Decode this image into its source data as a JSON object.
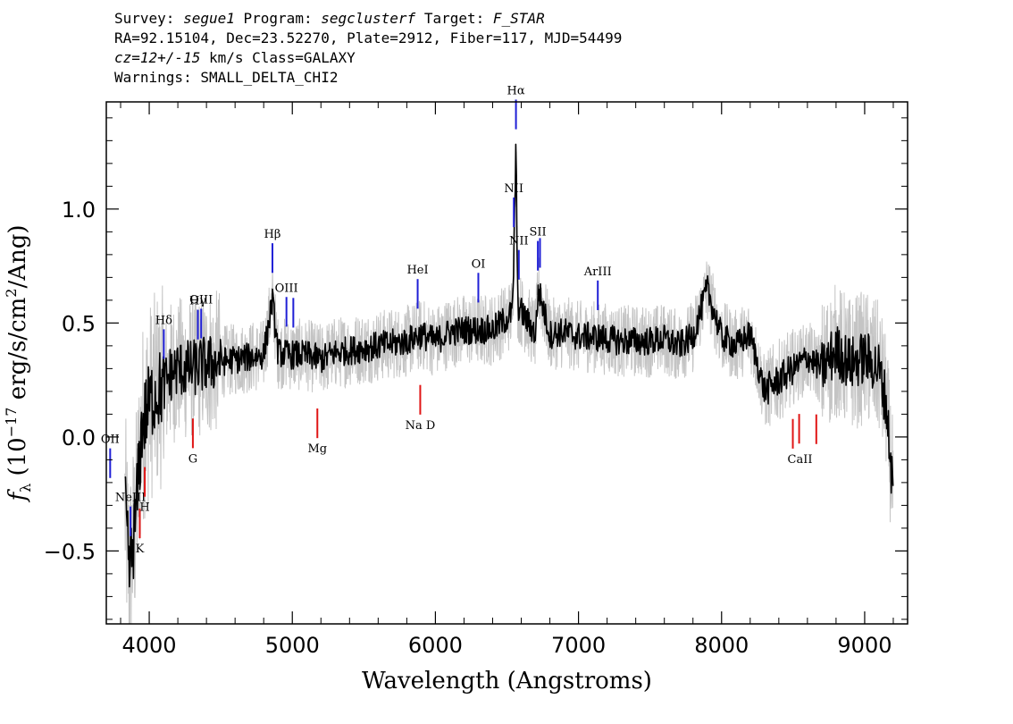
{
  "header": {
    "survey_label": "Survey:",
    "survey": "segue1",
    "program_label": "Program:",
    "program": "segclusterf",
    "target_label": "Target:",
    "target": "F_STAR",
    "line2": "RA=92.15104, Dec=23.52270, Plate=2912, Fiber=117, MJD=54499",
    "cz": "cz=12+/-15",
    "cz_units": "km/s Class=GALAXY",
    "warnings": "Warnings: SMALL_DELTA_CHI2"
  },
  "chart_data": {
    "type": "line",
    "xlabel": "Wavelength (Angstroms)",
    "ylabel": "f_λ (10^-17 erg/s/cm^2/Ang)",
    "xlim": [
      3700,
      9300
    ],
    "ylim": [
      -0.82,
      1.47
    ],
    "xticks": [
      4000,
      5000,
      6000,
      7000,
      8000,
      9000
    ],
    "yticks": [
      -0.5,
      0.0,
      0.5,
      1.0
    ],
    "xtick_labels": [
      "4000",
      "5000",
      "6000",
      "7000",
      "8000",
      "9000"
    ],
    "ytick_labels": [
      "−0.5",
      "0.0",
      "0.5",
      "1.0"
    ],
    "colors": {
      "smoothed": "#000000",
      "raw": "#c4c4c4",
      "emission": "#1f1fd6",
      "absorption": "#e01515"
    },
    "series": [
      {
        "name": "smoothed",
        "x": [
          3830,
          3860,
          3900,
          3950,
          4000,
          4050,
          4100,
          4150,
          4200,
          4300,
          4400,
          4500,
          4600,
          4700,
          4800,
          4861,
          4900,
          5000,
          5100,
          5200,
          5300,
          5400,
          5500,
          5600,
          5700,
          5800,
          5900,
          6000,
          6100,
          6200,
          6300,
          6400,
          6500,
          6540,
          6563,
          6575,
          6600,
          6700,
          6720,
          6800,
          6900,
          7000,
          7100,
          7200,
          7300,
          7400,
          7500,
          7600,
          7700,
          7800,
          7900,
          8000,
          8100,
          8200,
          8300,
          8400,
          8500,
          8600,
          8700,
          8800,
          8900,
          9000,
          9100,
          9150,
          9200
        ],
        "y": [
          -0.3,
          -0.6,
          -0.4,
          0.05,
          0.15,
          0.2,
          0.22,
          0.28,
          0.3,
          0.3,
          0.32,
          0.33,
          0.34,
          0.35,
          0.36,
          0.6,
          0.37,
          0.36,
          0.36,
          0.34,
          0.37,
          0.38,
          0.39,
          0.4,
          0.41,
          0.42,
          0.45,
          0.42,
          0.46,
          0.47,
          0.47,
          0.47,
          0.52,
          0.55,
          1.27,
          0.58,
          0.55,
          0.45,
          0.65,
          0.45,
          0.46,
          0.44,
          0.44,
          0.43,
          0.42,
          0.42,
          0.42,
          0.43,
          0.4,
          0.44,
          0.65,
          0.44,
          0.4,
          0.45,
          0.2,
          0.25,
          0.3,
          0.35,
          0.3,
          0.38,
          0.32,
          0.35,
          0.3,
          0.15,
          -0.25
        ]
      }
    ],
    "emission_lines": [
      {
        "label": "OII",
        "x": 3727
      },
      {
        "label": "NeIII",
        "x": 3869
      },
      {
        "label": "Hδ",
        "x": 4102
      },
      {
        "label": "Hγ",
        "x": 4340
      },
      {
        "label": "OIII",
        "x": 4363
      },
      {
        "label": "Hβ",
        "x": 4861
      },
      {
        "label": "OIII",
        "x": 4959
      },
      {
        "label": "OIII",
        "x": 5007
      },
      {
        "label": "HeI",
        "x": 5876
      },
      {
        "label": "OI",
        "x": 6300
      },
      {
        "label": "NII",
        "x": 6548
      },
      {
        "label": "Hα",
        "x": 6563
      },
      {
        "label": "NII",
        "x": 6583
      },
      {
        "label": "SII",
        "x": 6716
      },
      {
        "label": "SII",
        "x": 6731
      },
      {
        "label": "ArIII",
        "x": 7135
      }
    ],
    "absorption_lines": [
      {
        "label": "K",
        "x": 3934
      },
      {
        "label": "H",
        "x": 3969
      },
      {
        "label": "G",
        "x": 4305
      },
      {
        "label": "Mg",
        "x": 5175
      },
      {
        "label": "Na D",
        "x": 5894
      },
      {
        "label": "CaII",
        "x": 8498
      },
      {
        "label": "CaII",
        "x": 8542
      },
      {
        "label": "CaII",
        "x": 8662
      }
    ]
  }
}
